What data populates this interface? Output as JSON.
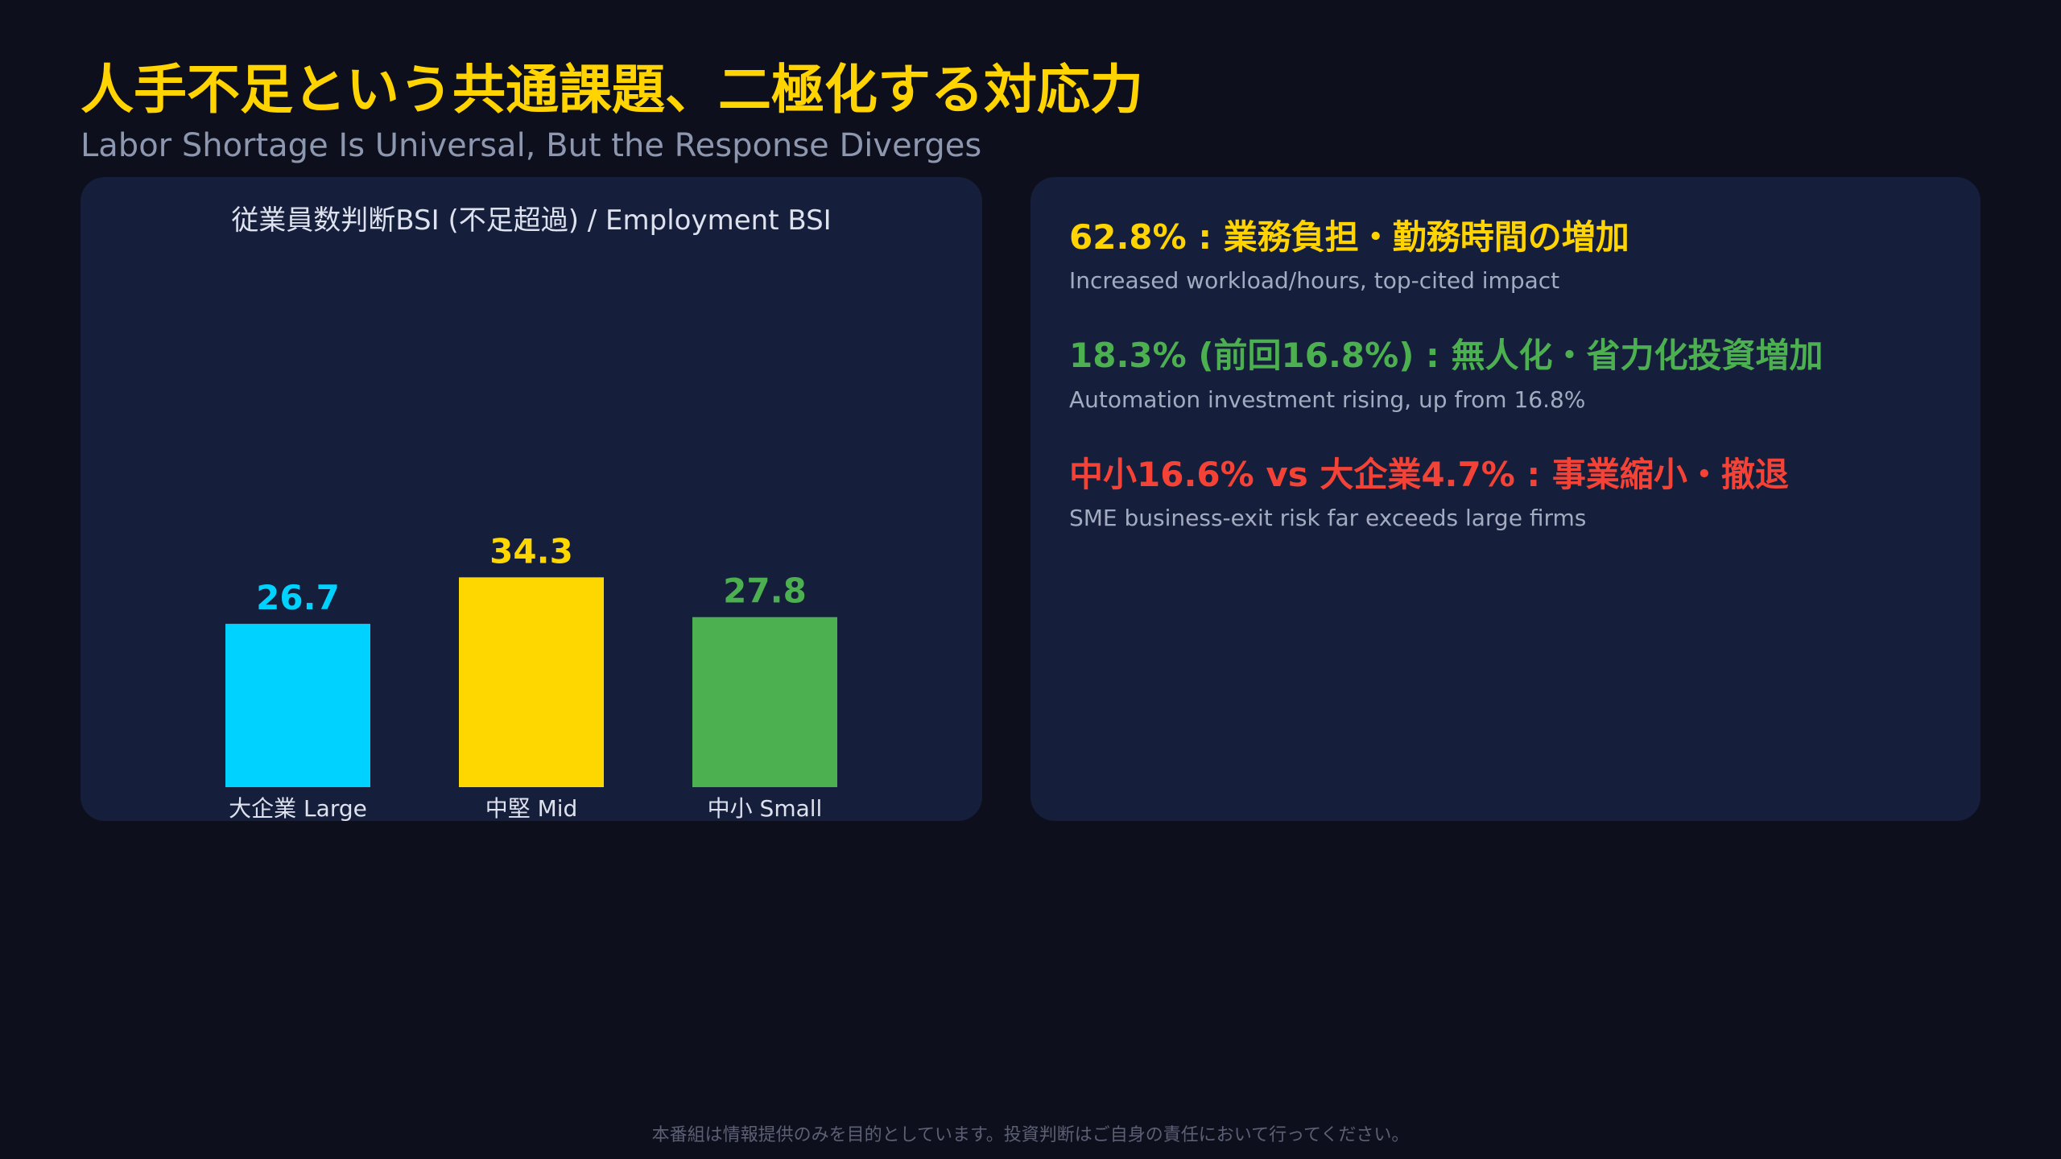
{
  "header": {
    "title": "人手不足という共通課題、二極化する対応力",
    "subtitle": "Labor Shortage Is Universal, But the Response Diverges"
  },
  "chart_data": {
    "type": "bar",
    "title": "従業員数判断BSI (不足超過) / Employment BSI",
    "categories": [
      "大企業 Large",
      "中堅 Mid",
      "中小 Small"
    ],
    "values": [
      26.7,
      34.3,
      27.8
    ],
    "value_labels": [
      "26.7",
      "34.3",
      "27.8"
    ],
    "colors": [
      "#00d2ff",
      "#ffd700",
      "#4caf50"
    ],
    "xlabel": "",
    "ylabel": "",
    "ylim": [
      0,
      40
    ],
    "grid": false,
    "legend": "none"
  },
  "findings": [
    {
      "headline": "62.8% : 業務負担・勤務時間の増加",
      "detail": "Increased workload/hours, top-cited impact",
      "color": "#ffd400"
    },
    {
      "headline": "18.3% (前回16.8%) : 無人化・省力化投資増加",
      "detail": "Automation investment rising, up from 16.8%",
      "color": "#4caf50"
    },
    {
      "headline": "中小16.6% vs 大企業4.7% : 事業縮小・撤退",
      "detail": "SME business-exit risk far exceeds large firms",
      "color": "#f44336"
    }
  ],
  "footer": {
    "disclaimer": "本番組は情報提供のみを目的としています。投資判断はご自身の責任において行ってください。"
  }
}
